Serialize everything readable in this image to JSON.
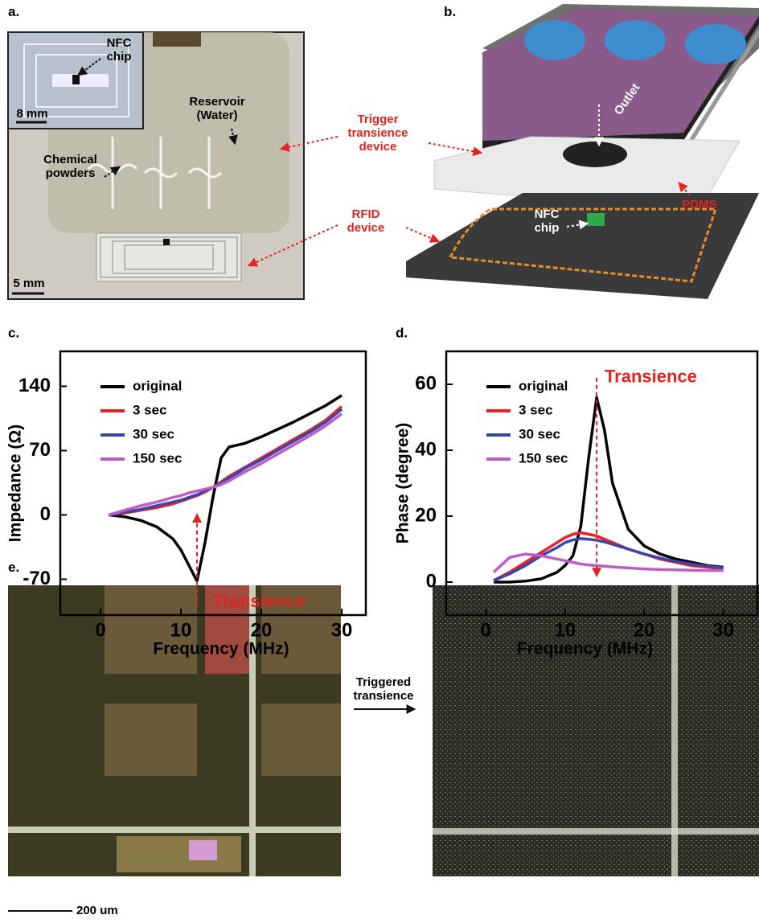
{
  "panels": {
    "a": {
      "label": "a.",
      "nfc_chip": "NFC chip",
      "inset_scale": "8 mm",
      "reservoir": "Reservoir (Water)",
      "powders": "Chemical powders",
      "scale": "5 mm"
    },
    "b": {
      "label": "b.",
      "trigger": "Trigger transience device",
      "outlet": "Outlet",
      "pdms": "PDMS",
      "rfid": "RFID device",
      "nfc_chip": "NFC chip"
    },
    "e": {
      "label": "e.",
      "arrow_label": "Triggered transience",
      "scale": "200 um"
    }
  },
  "chart_data": [
    {
      "type": "line",
      "panel_label": "c.",
      "x_label": "Frequency (MHz)",
      "y_label": "Impedance (Ω)",
      "annotation": "Transience",
      "x": [
        1,
        3,
        5,
        7,
        9,
        10,
        11,
        12,
        13,
        14,
        15,
        16,
        18,
        20,
        22,
        24,
        26,
        28,
        30
      ],
      "series": [
        {
          "name": "original",
          "color": "#000000",
          "values": [
            0,
            -2,
            -6,
            -13,
            -26,
            -38,
            -55,
            -72,
            -30,
            20,
            62,
            74,
            78,
            85,
            93,
            101,
            110,
            119,
            130
          ]
        },
        {
          "name": "3 sec",
          "color": "#e8202a",
          "values": [
            0,
            2,
            5,
            8,
            12,
            15,
            18,
            21,
            25,
            30,
            36,
            42,
            52,
            62,
            72,
            82,
            92,
            103,
            118
          ]
        },
        {
          "name": "30 sec",
          "color": "#3a46a8",
          "values": [
            0,
            3,
            6,
            10,
            14,
            16,
            19,
            22,
            26,
            30,
            35,
            40,
            51,
            60,
            70,
            80,
            90,
            101,
            115
          ]
        },
        {
          "name": "150 sec",
          "color": "#c05cc8",
          "values": [
            0,
            5,
            10,
            14,
            19,
            21,
            24,
            26,
            28,
            30,
            33,
            37,
            47,
            56,
            66,
            76,
            86,
            97,
            110
          ]
        }
      ],
      "xlim": [
        -5,
        33
      ],
      "ylim": [
        -109,
        178
      ],
      "xticks": [
        0,
        10,
        20,
        30
      ],
      "yticks": [
        -70,
        0,
        70,
        140
      ],
      "legend": "upper left"
    },
    {
      "type": "line",
      "panel_label": "d.",
      "x_label": "Frequency (MHz)",
      "y_label": "Phase (degree)",
      "annotation": "Transience",
      "x": [
        1,
        3,
        5,
        7,
        9,
        10,
        11,
        12,
        13,
        14,
        15,
        16,
        18,
        20,
        22,
        24,
        26,
        28,
        30
      ],
      "series": [
        {
          "name": "original",
          "color": "#000000",
          "values": [
            0,
            0,
            0.3,
            1,
            3,
            5,
            8,
            17,
            38,
            56,
            46,
            30,
            16,
            11,
            8.5,
            7,
            6,
            5,
            4.5
          ]
        },
        {
          "name": "3 sec",
          "color": "#e8202a",
          "values": [
            0.5,
            3,
            6,
            9,
            12,
            13.5,
            14.5,
            15,
            14.5,
            14,
            13,
            12,
            10,
            8.5,
            7,
            6,
            5,
            4.5,
            4
          ]
        },
        {
          "name": "30 sec",
          "color": "#3a46a8",
          "values": [
            0.5,
            2.5,
            5,
            8,
            10.5,
            12,
            12.8,
            13.2,
            13,
            12.7,
            12.2,
            11.5,
            10,
            8.5,
            7.3,
            6.3,
            5.5,
            4.8,
            4.3
          ]
        },
        {
          "name": "150 sec",
          "color": "#c05cc8",
          "values": [
            3,
            7.5,
            8.5,
            8,
            7,
            6.5,
            6,
            5.5,
            5.2,
            5,
            4.8,
            4.6,
            4.3,
            4,
            3.8,
            3.7,
            3.6,
            3.5,
            3.5
          ]
        }
      ],
      "xlim": [
        -5,
        34.3
      ],
      "ylim": [
        -10,
        70
      ],
      "xticks": [
        0,
        10,
        20,
        30
      ],
      "yticks": [
        0,
        20,
        40,
        60
      ],
      "legend": "upper left"
    }
  ]
}
